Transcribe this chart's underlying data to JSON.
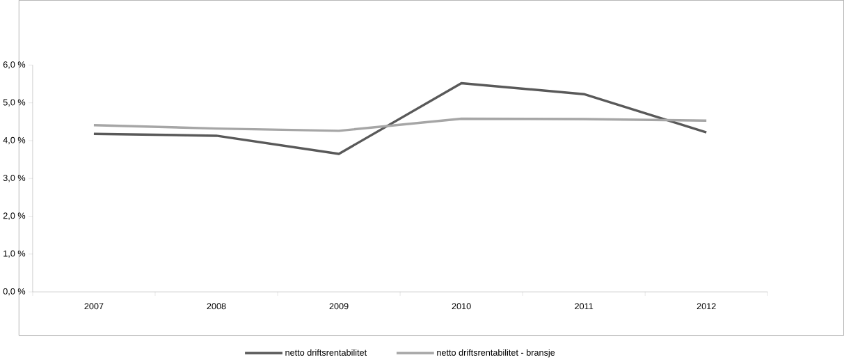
{
  "chart_data": {
    "type": "line",
    "categories": [
      "2007",
      "2008",
      "2009",
      "2010",
      "2011",
      "2012"
    ],
    "series": [
      {
        "name": "netto driftsrentabilitet",
        "color": "#595959",
        "values": [
          4.18,
          4.13,
          3.65,
          5.52,
          5.23,
          4.22
        ]
      },
      {
        "name": "netto driftsrentabilitet - bransje",
        "color": "#a6a6a6",
        "values": [
          4.41,
          4.32,
          4.26,
          4.58,
          4.57,
          4.53
        ]
      }
    ],
    "ylim": [
      0,
      6
    ],
    "yticks": [
      {
        "value": 0,
        "label": "0,0 %"
      },
      {
        "value": 1,
        "label": "1,0 %"
      },
      {
        "value": 2,
        "label": "2,0 %"
      },
      {
        "value": 3,
        "label": "3,0 %"
      },
      {
        "value": 4,
        "label": "4,0 %"
      },
      {
        "value": 5,
        "label": "5,0 %"
      },
      {
        "value": 6,
        "label": "6,0 %"
      }
    ],
    "grid": false,
    "legend": "bottom",
    "marker": "none",
    "line_style": "solid"
  }
}
